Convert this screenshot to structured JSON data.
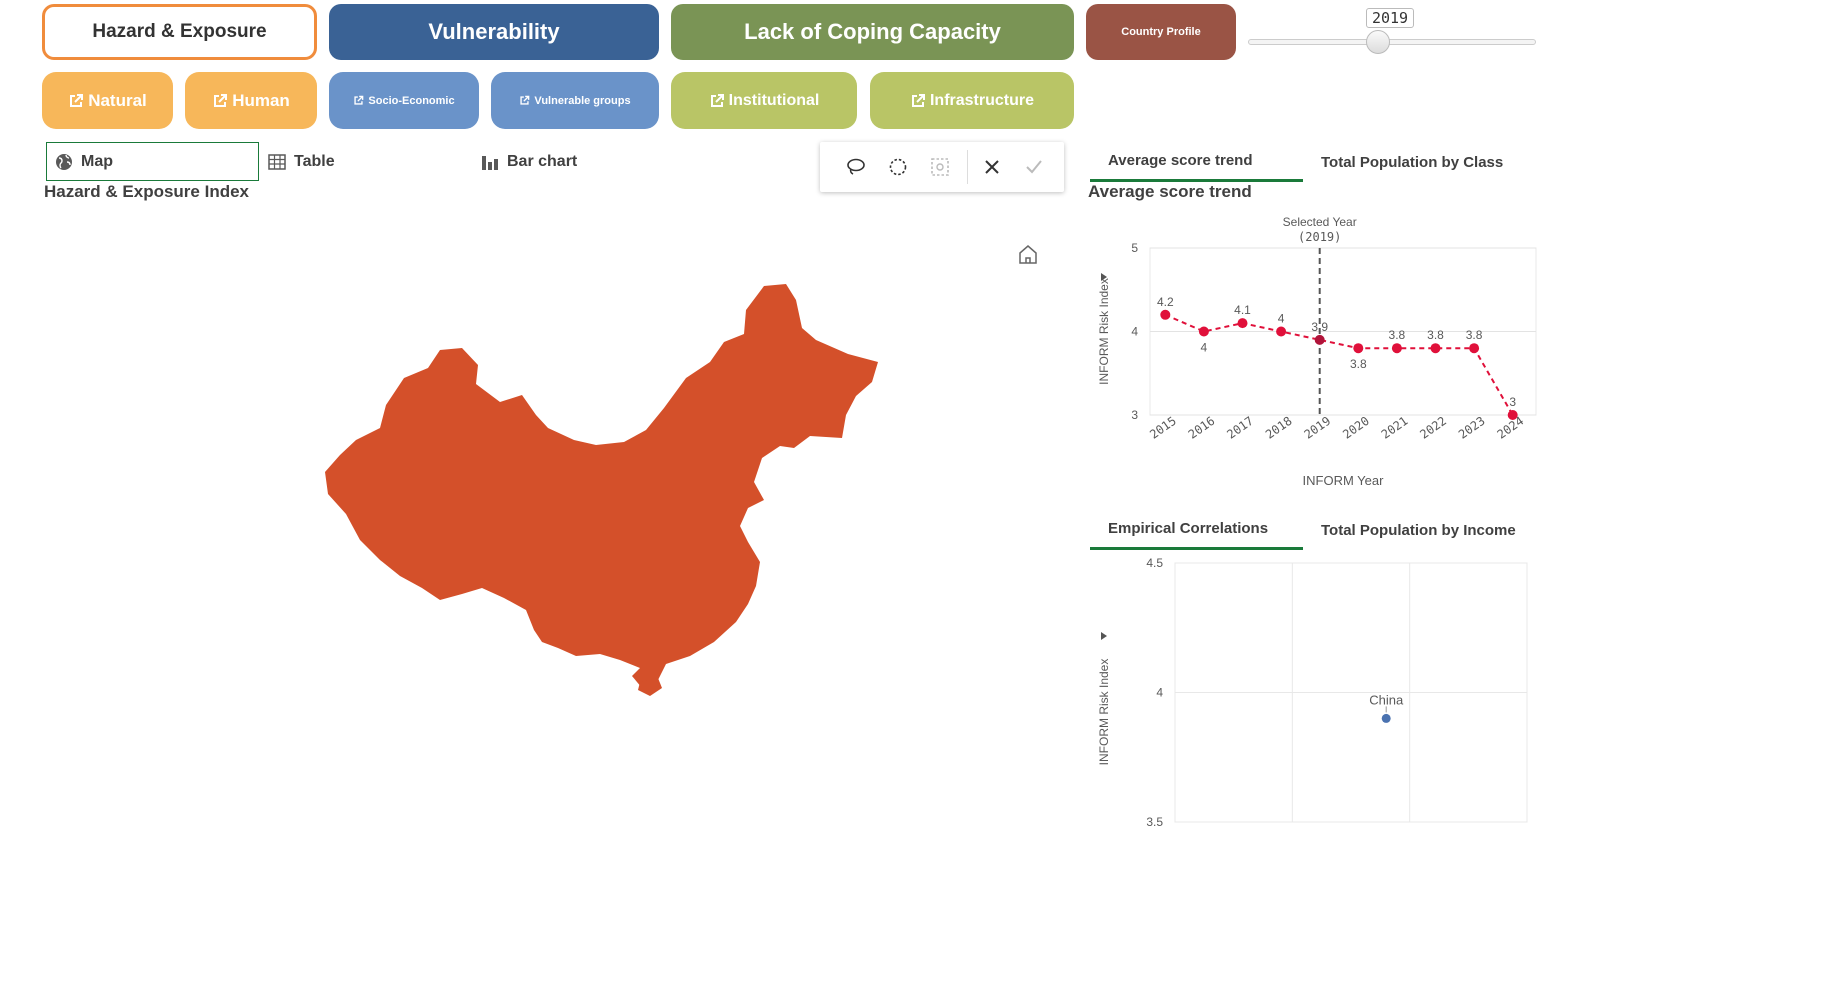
{
  "top_tabs": [
    {
      "label": "Hazard & Exposure",
      "color": "#ffffff",
      "border": "#f08c3c",
      "text": "#333333"
    },
    {
      "label": "Vulnerability",
      "color": "#3a6295"
    },
    {
      "label": "Lack of Coping Capacity",
      "color": "#7a9455"
    },
    {
      "label": "Country Profile",
      "color": "#9a5445"
    }
  ],
  "year_slider": {
    "value": "2019",
    "min": 2015,
    "max": 2024
  },
  "sub_buttons": [
    {
      "label": "Natural",
      "color": "#f7b75a"
    },
    {
      "label": "Human",
      "color": "#f7b75a"
    },
    {
      "label": "Socio-Economic",
      "color": "#6a93c9"
    },
    {
      "label": "Vulnerable groups",
      "color": "#6a93c9"
    },
    {
      "label": "Institutional",
      "color": "#b9c566"
    },
    {
      "label": "Infrastructure",
      "color": "#b9c566"
    }
  ],
  "view_tabs": {
    "map": "Map",
    "table": "Table",
    "bar": "Bar chart"
  },
  "map_panel": {
    "title": "Hazard & Exposure Index",
    "fill": "#d4502a"
  },
  "right_tabs_top": {
    "tab1": "Average score trend",
    "tab2": "Total Population by Class"
  },
  "trend_chart_title": "Average score trend",
  "right_tabs_bottom": {
    "tab1": "Empirical Correlations",
    "tab2": "Total Population by Income"
  },
  "chart_data": [
    {
      "type": "line",
      "title": "Average score trend",
      "xlabel": "INFORM Year",
      "ylabel": "INFORM Risk Index",
      "x": [
        "2015",
        "2016",
        "2017",
        "2018",
        "2019",
        "2020",
        "2021",
        "2022",
        "2023",
        "2024"
      ],
      "series": [
        {
          "values": [
            4.2,
            4.0,
            4.1,
            4.0,
            3.9,
            3.8,
            3.8,
            3.8,
            3.8,
            3.0
          ],
          "labels": [
            "4.2",
            "4",
            "4.1",
            "4",
            "3.9",
            "3.8",
            "3.8",
            "3.8",
            "3.8",
            "3"
          ]
        }
      ],
      "ylim": [
        3,
        5
      ],
      "yticks": [
        "3",
        "4",
        "5"
      ],
      "annotation": {
        "x": "2019",
        "text": "Selected Year",
        "subtext": "(2019)"
      },
      "color": "#e0103a",
      "grid": true
    },
    {
      "type": "scatter",
      "title": "Empirical Correlations",
      "ylabel": "INFORM Risk Index",
      "ylim": [
        3.5,
        4.5
      ],
      "yticks": [
        "4.5",
        "4",
        "3.5"
      ],
      "points": [
        {
          "label": "China",
          "y": 3.9
        }
      ],
      "color": "#4a72b0",
      "grid": true
    }
  ]
}
